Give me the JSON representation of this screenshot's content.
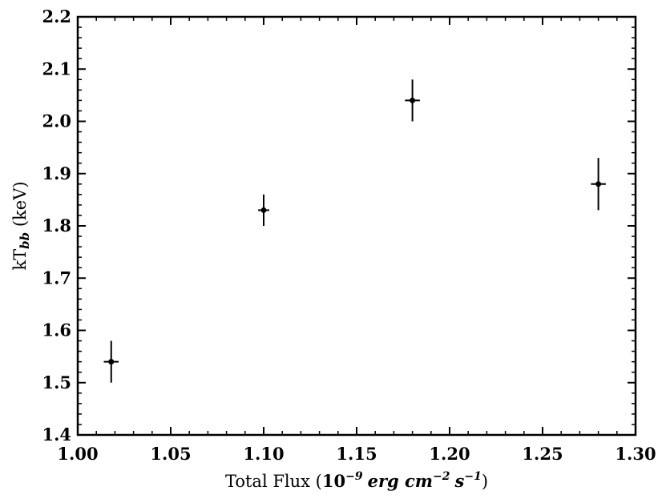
{
  "chart_data": {
    "type": "scatter",
    "xlabel": {
      "prefix": "Total Flux (",
      "mantissa": "10",
      "exp1": "−9",
      "unit1": "erg cm",
      "exp2": "−2",
      "unit2": "s",
      "exp3": "−1",
      "suffix": ")"
    },
    "ylabel": {
      "prefix": "kT",
      "sub": "bb",
      "suffix": " (keV)"
    },
    "xlim": [
      1.0,
      1.3
    ],
    "ylim": [
      1.4,
      2.2
    ],
    "xticks": [
      "1.00",
      "1.05",
      "1.10",
      "1.15",
      "1.20",
      "1.25",
      "1.30"
    ],
    "yticks": [
      "1.4",
      "1.5",
      "1.6",
      "1.7",
      "1.8",
      "1.9",
      "2.0",
      "2.1",
      "2.2"
    ],
    "x_minor_step": 0.01,
    "y_minor_step": 0.02,
    "grid": false,
    "points": [
      {
        "x": 1.018,
        "y": 1.54,
        "xerr": 0.004,
        "yerr_low": 0.04,
        "yerr_high": 0.04
      },
      {
        "x": 1.1,
        "y": 1.83,
        "xerr": 0.003,
        "yerr_low": 0.03,
        "yerr_high": 0.03
      },
      {
        "x": 1.18,
        "y": 2.04,
        "xerr": 0.004,
        "yerr_low": 0.04,
        "yerr_high": 0.04
      },
      {
        "x": 1.28,
        "y": 1.88,
        "xerr": 0.004,
        "yerr_low": 0.05,
        "yerr_high": 0.05
      }
    ],
    "marker_color": "#000000"
  }
}
